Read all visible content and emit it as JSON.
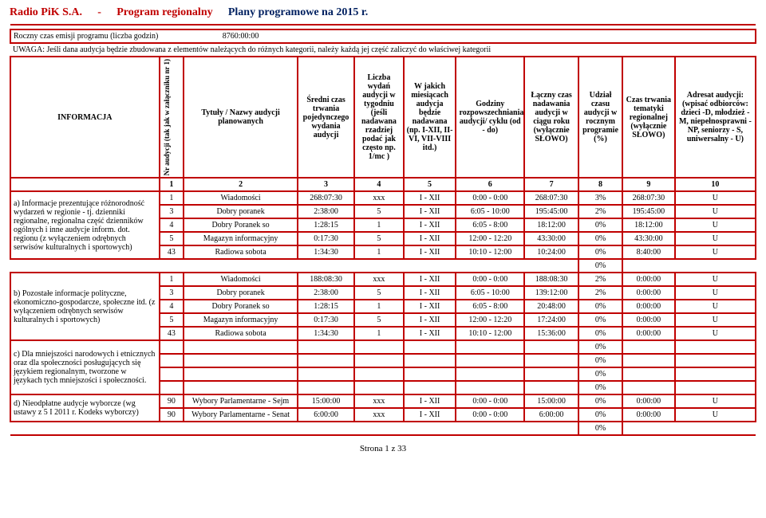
{
  "title": {
    "company": "Radio PiK S.A.",
    "dash": "-",
    "program": "Program regionalny",
    "plans": "Plany programowe na 2015 r."
  },
  "emisji_label": "Roczny czas emisji programu (liczba godzin)",
  "emisji_value": "8760:00:00",
  "uwaga": "UWAGA: Jeśli dana audycja będzie zbudowana z elementów należących do różnych kategorii, należy każdą jej część zaliczyć do właściwej kategorii",
  "info_label": "INFORMACJA",
  "col_nr": "Nr audycji (tak jak w załączniku nr 1)",
  "col_tytuly": "Tytuły / Nazwy audycji planowanych",
  "col_sredni": "Średni czas trwania pojedynczego wydania audycji",
  "col_liczba": "Liczba wydań audycji w tygodniu (jeśli nadawana rzadziej podać jak często np. 1/mc )",
  "col_wjakich": "W jakich miesiącach audycja będzie nadawana (np. I-XII, II-VI, VII-VIII itd.)",
  "col_godziny": "Godziny rozpowszechniania audycji/ cyklu (od - do)",
  "col_laczny": "Łączny czas nadawania audycji w ciągu roku (wyłącznie SŁOWO)",
  "col_udzial": "Udział czasu audycji w rocznym programie (%)",
  "col_czas": "Czas trwania tematyki regionalnej (wyłącznie SŁOWO)",
  "col_adresat": "Adresat audycji: (wpisać odbiorców: dzieci -D, młodzież - M, niepełnosprawni - NP, seniorzy - S, uniwersalny - U)",
  "numrow": {
    "n1": "1",
    "n2": "2",
    "n3": "3",
    "n4": "4",
    "n5": "5",
    "n6": "6",
    "n7": "7",
    "n8": "8",
    "n9": "9",
    "n10": "10"
  },
  "section_a": "a) Informacje prezentujące różnorodność wydarzeń w regionie - tj. dzienniki regionalne, regionalna część dzienników ogólnych i inne audycje inform. dot. regionu   (z wyłączeniem odrębnych serwisów kulturalnych i sportowych)",
  "section_b": "b) Pozostałe informacje polityczne, ekonomiczno-gospodarcze, społeczne itd.   (z wyłączeniem odrębnych serwisów kulturalnych i sportowych)",
  "section_c": "c) Dla mniejszości narodowych i etnicznych oraz dla społeczności posługujących się językiem regionalnym, tworzone w językach tych mniejszości i społeczności.",
  "section_d": "d) Nieodpłatne audycje wyborcze (wg ustawy z 5 I 2011 r. Kodeks wyborczy)",
  "rows_a": [
    {
      "nr": "1",
      "name": "Wiadomości",
      "c3": "268:07:30",
      "c4": "xxx",
      "c5": "I - XII",
      "c6": "0:00 - 0:00",
      "c7": "268:07:30",
      "c8": "3%",
      "c9": "268:07:30",
      "c10": "U"
    },
    {
      "nr": "3",
      "name": "Dobry poranek",
      "c3": "2:38:00",
      "c4": "5",
      "c5": "I - XII",
      "c6": "6:05 - 10:00",
      "c7": "195:45:00",
      "c8": "2%",
      "c9": "195:45:00",
      "c10": "U"
    },
    {
      "nr": "4",
      "name": "Dobry Poranek  so",
      "c3": "1:28:15",
      "c4": "1",
      "c5": "I - XII",
      "c6": "6:05 - 8:00",
      "c7": "18:12:00",
      "c8": "0%",
      "c9": "18:12:00",
      "c10": "U"
    },
    {
      "nr": "5",
      "name": "Magazyn informacyjny",
      "c3": "0:17:30",
      "c4": "5",
      "c5": "I - XII",
      "c6": "12:00 - 12:20",
      "c7": "43:30:00",
      "c8": "0%",
      "c9": "43:30:00",
      "c10": "U"
    },
    {
      "nr": "43",
      "name": "Radiowa sobota",
      "c3": "1:34:30",
      "c4": "1",
      "c5": "I - XII",
      "c6": "10:10 - 12:00",
      "c7": "10:24:00",
      "c8": "0%",
      "c9": "8:40:00",
      "c10": "U"
    }
  ],
  "rows_b": [
    {
      "nr": "1",
      "name": "Wiadomości",
      "c3": "188:08:30",
      "c4": "xxx",
      "c5": "I - XII",
      "c6": "0:00 - 0:00",
      "c7": "188:08:30",
      "c8": "2%",
      "c9": "0:00:00",
      "c10": "U"
    },
    {
      "nr": "3",
      "name": "Dobry poranek",
      "c3": "2:38:00",
      "c4": "5",
      "c5": "I - XII",
      "c6": "6:05 - 10:00",
      "c7": "139:12:00",
      "c8": "2%",
      "c9": "0:00:00",
      "c10": "U"
    },
    {
      "nr": "4",
      "name": "Dobry Poranek  so",
      "c3": "1:28:15",
      "c4": "1",
      "c5": "I - XII",
      "c6": "6:05 - 8:00",
      "c7": "20:48:00",
      "c8": "0%",
      "c9": "0:00:00",
      "c10": "U"
    },
    {
      "nr": "5",
      "name": "Magazyn informacyjny",
      "c3": "0:17:30",
      "c4": "5",
      "c5": "I - XII",
      "c6": "12:00 - 12:20",
      "c7": "17:24:00",
      "c8": "0%",
      "c9": "0:00:00",
      "c10": "U"
    },
    {
      "nr": "43",
      "name": "Radiowa sobota",
      "c3": "1:34:30",
      "c4": "1",
      "c5": "I - XII",
      "c6": "10:10 - 12:00",
      "c7": "15:36:00",
      "c8": "0%",
      "c9": "0:00:00",
      "c10": "U"
    }
  ],
  "rows_c_pct": [
    "0%",
    "0%",
    "0%",
    "0%"
  ],
  "rows_d": [
    {
      "nr": "90",
      "name": "Wybory Parlamentarne - Sejm",
      "c3": "15:00:00",
      "c4": "xxx",
      "c5": "I - XII",
      "c6": "0:00 - 0:00",
      "c7": "15:00:00",
      "c8": "0%",
      "c9": "0:00:00",
      "c10": "U"
    },
    {
      "nr": "90",
      "name": "Wybory Parlamentarne - Senat",
      "c3": "6:00:00",
      "c4": "xxx",
      "c5": "I - XII",
      "c6": "0:00 - 0:00",
      "c7": "6:00:00",
      "c8": "0%",
      "c9": "0:00:00",
      "c10": "U"
    }
  ],
  "spacer_pct_after_a": "0%",
  "spacer_pct_after_d": "0%",
  "footer": "Strona 1 z 33"
}
